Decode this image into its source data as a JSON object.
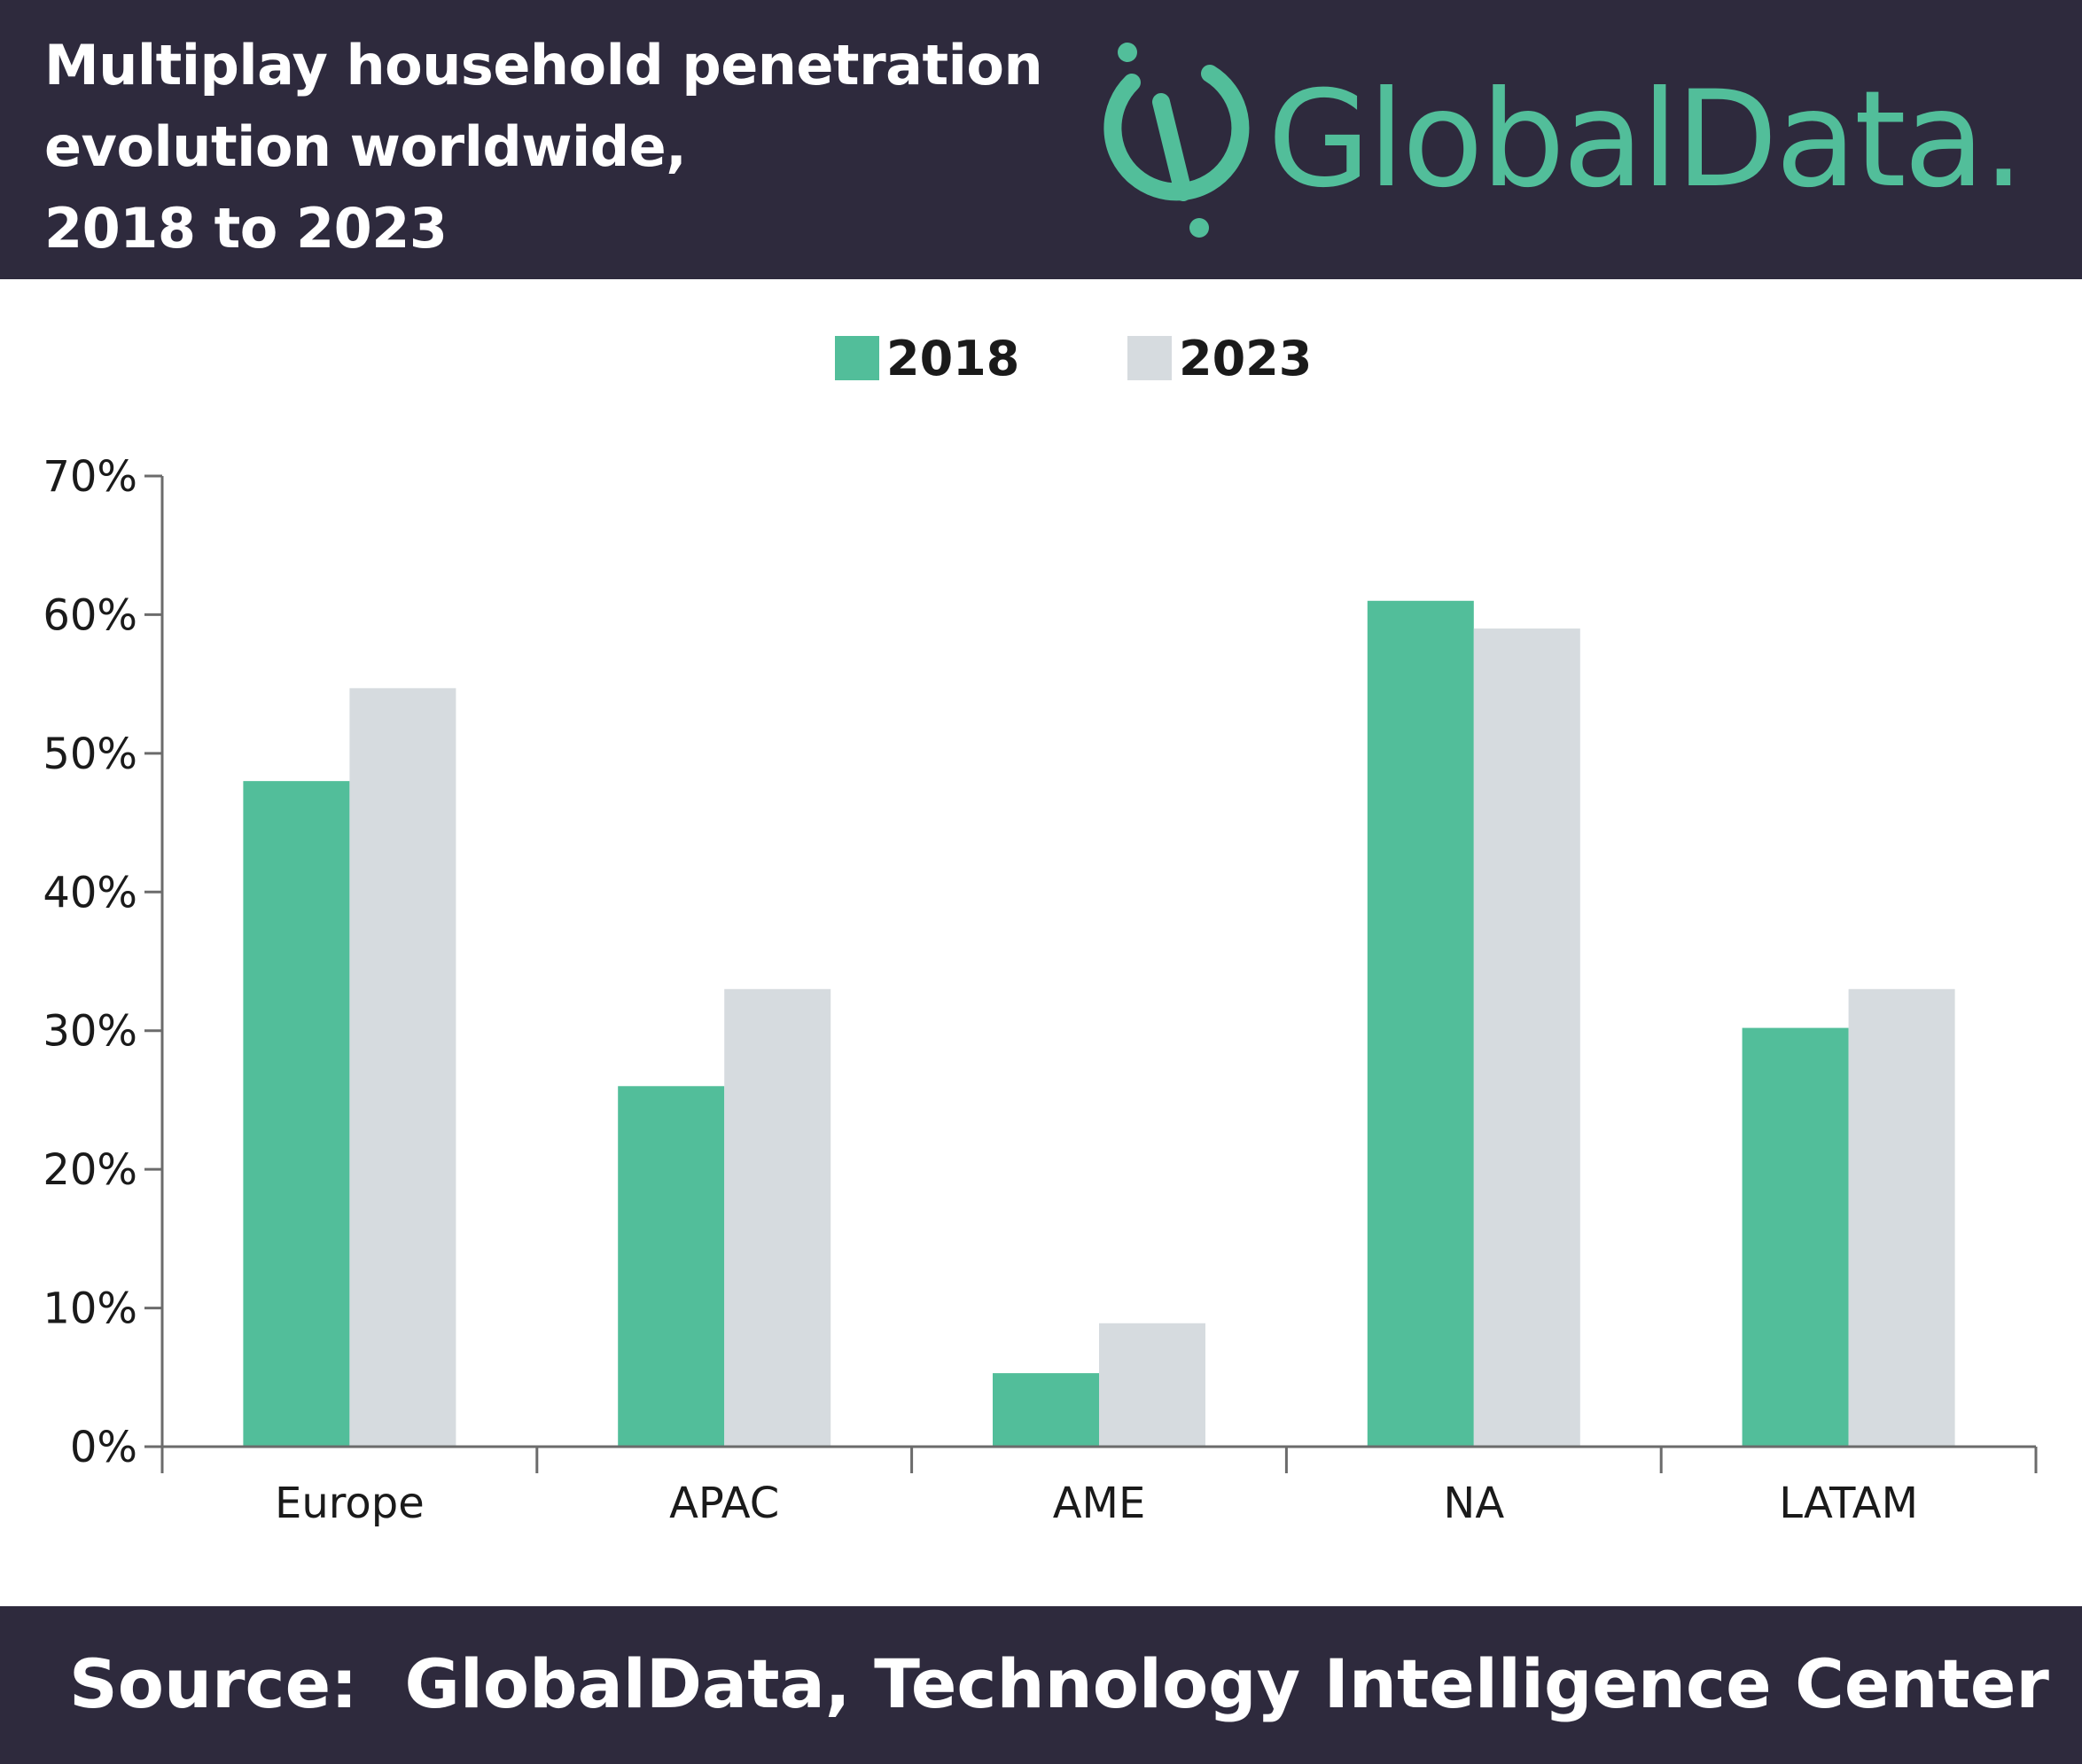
{
  "header": {
    "title_lines": [
      "Multiplay household penetration",
      "evolution worldwide,",
      "2018 to 2023"
    ],
    "logo_text": "GlobalData.",
    "logo_icon": "globaldata-logo-icon"
  },
  "footer": {
    "source": "Source:  GlobalData, Technology Intelligence Center"
  },
  "colors": {
    "header_bg": "#2e2a3d",
    "series_2018": "#52be9a",
    "series_2023": "#d6dbdf",
    "axis": "#6b6b6b"
  },
  "chart_data": {
    "type": "bar",
    "categories": [
      "Europe",
      "APAC",
      "AME",
      "NA",
      "LATAM"
    ],
    "series": [
      {
        "name": "2018",
        "values": [
          48,
          26,
          5.3,
          61,
          30.2
        ]
      },
      {
        "name": "2023",
        "values": [
          54.7,
          33,
          8.9,
          59,
          33
        ]
      }
    ],
    "y_ticks": [
      "0%",
      "10%",
      "20%",
      "30%",
      "40%",
      "50%",
      "60%",
      "70%"
    ],
    "ylim": [
      0,
      70
    ],
    "legend_position": "top-center",
    "grid": false,
    "xlabel": "",
    "ylabel": ""
  }
}
